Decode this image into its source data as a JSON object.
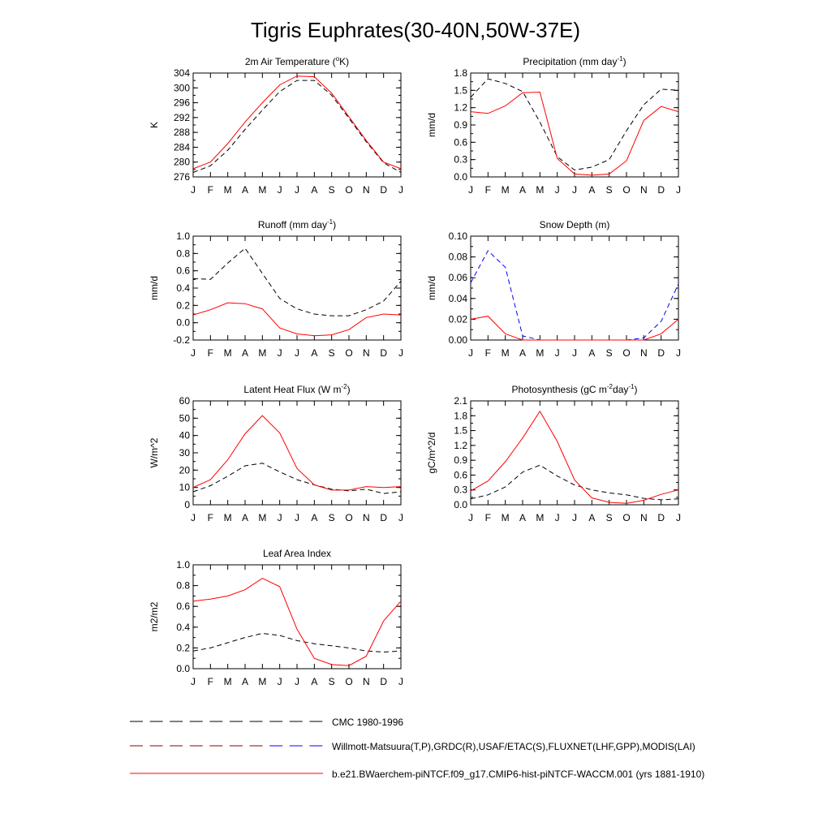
{
  "figure": {
    "title": "Tigris Euphrates(30-40N,50W-37E)"
  },
  "month_labels": [
    "J",
    "F",
    "M",
    "A",
    "M",
    "J",
    "J",
    "A",
    "S",
    "O",
    "N",
    "D",
    "J"
  ],
  "chart_data": [
    {
      "type": "line",
      "title": "2m Air Temperature (",
      "title_sup": "o",
      "title_tail": "K)",
      "ylabel": "K",
      "ylim": [
        276,
        304
      ],
      "yticks": [
        276,
        280,
        284,
        288,
        292,
        296,
        300,
        304
      ],
      "series": [
        {
          "values": [
            277.2,
            279.0,
            283.2,
            288.8,
            294.0,
            299.0,
            302.0,
            302.0,
            298.0,
            291.8,
            285.5,
            279.8,
            277.2
          ],
          "color": "#000000",
          "dashed": true
        },
        {
          "values": [
            278.2,
            280.0,
            285.0,
            290.8,
            296.0,
            300.8,
            303.2,
            303.0,
            298.6,
            292.2,
            285.8,
            280.0,
            278.2
          ],
          "color": "#ff0000",
          "dashed": false
        }
      ]
    },
    {
      "type": "line",
      "title": "Precipitation (mm day",
      "title_sup": "-1",
      "title_tail": ")",
      "ylabel": "mm/d",
      "ylim": [
        0.0,
        1.8
      ],
      "yticks": [
        0.0,
        0.3,
        0.6,
        0.9,
        1.2,
        1.5,
        1.8
      ],
      "series": [
        {
          "values": [
            1.38,
            1.7,
            1.62,
            1.48,
            0.95,
            0.35,
            0.12,
            0.17,
            0.3,
            0.8,
            1.25,
            1.52,
            1.5
          ],
          "color": "#000000",
          "dashed": true
        },
        {
          "values": [
            1.13,
            1.1,
            1.23,
            1.46,
            1.47,
            0.32,
            0.05,
            0.03,
            0.05,
            0.28,
            0.98,
            1.22,
            1.13
          ],
          "color": "#ff0000",
          "dashed": false
        }
      ]
    },
    {
      "type": "line",
      "title": "Runoff (mm day",
      "title_sup": "-1",
      "title_tail": ")",
      "ylabel": "mm/d",
      "ylim": [
        -0.2,
        1.0
      ],
      "yticks": [
        -0.2,
        0.0,
        0.2,
        0.4,
        0.6,
        0.8,
        1.0
      ],
      "series": [
        {
          "values": [
            0.51,
            0.5,
            0.69,
            0.86,
            0.57,
            0.28,
            0.16,
            0.1,
            0.08,
            0.08,
            0.15,
            0.25,
            0.48
          ],
          "color": "#000000",
          "dashed": true
        },
        {
          "values": [
            0.09,
            0.15,
            0.23,
            0.22,
            0.16,
            -0.06,
            -0.13,
            -0.15,
            -0.14,
            -0.08,
            0.06,
            0.1,
            0.09
          ],
          "color": "#ff0000",
          "dashed": false
        }
      ]
    },
    {
      "type": "line",
      "title": "Snow Depth (m)",
      "title_sup": "",
      "title_tail": "",
      "ylabel": "mm/d",
      "ylim": [
        0.0,
        0.1
      ],
      "yticks": [
        0.0,
        0.02,
        0.04,
        0.06,
        0.08,
        0.1
      ],
      "tick_decimals": 2,
      "series": [
        {
          "values": [
            0.0,
            0.0,
            0.0,
            0.0,
            0.0,
            0.0,
            0.0,
            0.0,
            0.0,
            0.0,
            0.0,
            0.0,
            0.0
          ],
          "color": "#000000",
          "dashed": true
        },
        {
          "values": [
            0.055,
            0.086,
            0.07,
            0.004,
            0.0,
            0.0,
            0.0,
            0.0,
            0.0,
            0.0,
            0.002,
            0.018,
            0.054
          ],
          "color": "#0000ff",
          "dashed": true
        },
        {
          "values": [
            0.02,
            0.023,
            0.006,
            0.0,
            0.0,
            0.0,
            0.0,
            0.0,
            0.0,
            0.0,
            0.0,
            0.006,
            0.02
          ],
          "color": "#ff0000",
          "dashed": false
        }
      ]
    },
    {
      "type": "line",
      "title": "Latent Heat Flux (W m",
      "title_sup": "-2",
      "title_tail": ")",
      "ylabel": "W/m^2",
      "ylim": [
        0,
        60
      ],
      "yticks": [
        0,
        10,
        20,
        30,
        40,
        50,
        60
      ],
      "series": [
        {
          "values": [
            7.5,
            11.0,
            16.5,
            22.5,
            24.0,
            19.0,
            14.5,
            11.5,
            9.0,
            8.0,
            9.0,
            6.5,
            7.5
          ],
          "color": "#000000",
          "dashed": true
        },
        {
          "values": [
            10.0,
            14.5,
            26.0,
            41.0,
            51.5,
            41.5,
            21.0,
            11.5,
            8.5,
            8.5,
            10.5,
            10.0,
            10.5
          ],
          "color": "#ff0000",
          "dashed": false
        }
      ]
    },
    {
      "type": "line",
      "title": "Photosynthesis (gC m",
      "title_sup": "-2",
      "title_tail": "day",
      "title_sup2": "-1",
      "title_tail2": ")",
      "ylabel": "gC/m^2/d",
      "ylim": [
        0.0,
        2.1
      ],
      "yticks": [
        0.0,
        0.3,
        0.6,
        0.9,
        1.2,
        1.5,
        1.8,
        2.1
      ],
      "series": [
        {
          "values": [
            0.12,
            0.2,
            0.36,
            0.66,
            0.8,
            0.58,
            0.4,
            0.3,
            0.24,
            0.2,
            0.13,
            0.1,
            0.12
          ],
          "color": "#000000",
          "dashed": true
        },
        {
          "values": [
            0.28,
            0.48,
            0.87,
            1.35,
            1.89,
            1.28,
            0.5,
            0.14,
            0.05,
            0.03,
            0.09,
            0.21,
            0.3
          ],
          "color": "#ff0000",
          "dashed": false
        }
      ]
    },
    {
      "type": "line",
      "title": "Leaf Area Index",
      "title_sup": "",
      "title_tail": "",
      "ylabel": "m2/m2",
      "ylim": [
        0.0,
        1.0
      ],
      "yticks": [
        0.0,
        0.2,
        0.4,
        0.6,
        0.8,
        1.0
      ],
      "series": [
        {
          "values": [
            0.17,
            0.2,
            0.25,
            0.3,
            0.34,
            0.32,
            0.27,
            0.24,
            0.22,
            0.2,
            0.17,
            0.16,
            0.17
          ],
          "color": "#000000",
          "dashed": true
        },
        {
          "values": [
            0.65,
            0.67,
            0.7,
            0.76,
            0.87,
            0.79,
            0.38,
            0.1,
            0.04,
            0.03,
            0.12,
            0.46,
            0.65
          ],
          "color": "#ff0000",
          "dashed": false
        }
      ]
    }
  ],
  "legend": [
    {
      "label": "CMC 1980-1996",
      "style": "dashed",
      "colors": [
        "#000000"
      ]
    },
    {
      "label": "Willmott-Matsuura(T,P),GRDC(R),USAF/ETAC(S),FLUXNET(LHF,GPP),MODIS(LAI)",
      "style": "dashed",
      "colors": [
        "#8b0000",
        "#0000ff"
      ]
    },
    {
      "label": "b.e21.BWaerchem-piNTCF.f09_g17.CMIP6-hist-piNTCF-WACCM.001 (yrs 1881-1910)",
      "style": "solid",
      "colors": [
        "#ff0000"
      ]
    }
  ]
}
